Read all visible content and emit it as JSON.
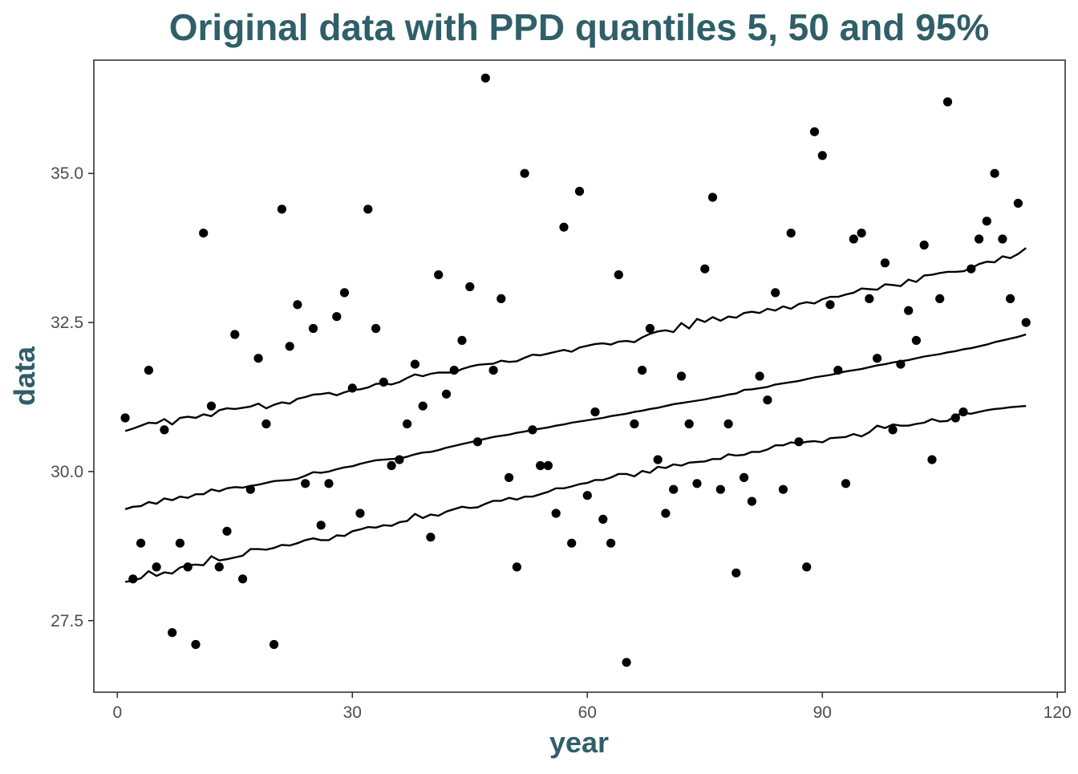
{
  "chart_data": {
    "type": "scatter",
    "title": "Original data with PPD quantiles 5, 50 and 95%",
    "xlabel": "year",
    "ylabel": "data",
    "xlim": [
      -3,
      121
    ],
    "ylim": [
      26.3,
      36.9
    ],
    "x_ticks": [
      0,
      30,
      60,
      90,
      120
    ],
    "x_tick_labels": [
      "0",
      "30",
      "60",
      "90",
      "120"
    ],
    "y_ticks": [
      27.5,
      30.0,
      32.5,
      35.0
    ],
    "y_tick_labels": [
      "27.5",
      "30.0",
      "32.5",
      "35.0"
    ],
    "grid": false,
    "legend": "none",
    "colors": {
      "title": "#2f5f68",
      "points": "#000000",
      "lines": "#000000",
      "panel_border": "#333333"
    },
    "points": {
      "x": [
        1,
        2,
        3,
        4,
        5,
        6,
        7,
        8,
        9,
        10,
        11,
        12,
        13,
        14,
        15,
        16,
        17,
        18,
        19,
        20,
        21,
        22,
        23,
        24,
        25,
        26,
        27,
        28,
        29,
        30,
        31,
        32,
        33,
        34,
        35,
        36,
        37,
        38,
        39,
        40,
        41,
        42,
        43,
        44,
        45,
        46,
        47,
        48,
        49,
        50,
        51,
        52,
        53,
        54,
        55,
        56,
        57,
        58,
        59,
        60,
        61,
        62,
        63,
        64,
        65,
        66,
        67,
        68,
        69,
        70,
        71,
        72,
        73,
        74,
        75,
        76,
        77,
        78,
        79,
        80,
        81,
        82,
        83,
        84,
        85,
        86,
        87,
        88,
        89,
        90,
        91,
        92,
        93,
        94,
        95,
        96,
        97,
        98,
        99,
        100,
        101,
        102,
        103,
        104,
        105,
        106,
        107,
        108,
        109,
        110,
        111,
        112,
        113,
        114,
        115,
        116
      ],
      "y": [
        30.9,
        28.2,
        28.8,
        31.7,
        28.4,
        30.7,
        27.3,
        28.8,
        28.4,
        27.1,
        34.0,
        31.1,
        28.4,
        29.0,
        32.3,
        28.2,
        29.7,
        31.9,
        30.8,
        27.1,
        34.4,
        32.1,
        32.8,
        29.8,
        32.4,
        29.1,
        29.8,
        32.6,
        33.0,
        31.4,
        29.3,
        34.4,
        32.4,
        31.5,
        30.1,
        30.2,
        30.8,
        31.8,
        31.1,
        28.9,
        33.3,
        31.3,
        31.7,
        32.2,
        33.1,
        30.5,
        36.6,
        31.7,
        32.9,
        29.9,
        28.4,
        35.0,
        30.7,
        30.1,
        30.1,
        29.3,
        34.1,
        28.8,
        34.7,
        29.6,
        31.0,
        29.2,
        28.8,
        33.3,
        26.8,
        30.8,
        31.7,
        32.4,
        30.2,
        29.3,
        29.7,
        31.6,
        30.8,
        29.8,
        33.4,
        34.6,
        29.7,
        30.8,
        28.3,
        29.9,
        29.5,
        31.6,
        31.2,
        33.0,
        29.7,
        34.0,
        30.5,
        28.4,
        35.7,
        35.3,
        32.8,
        31.7,
        29.8,
        33.9,
        34.0,
        32.9,
        31.9,
        33.5,
        30.7,
        31.8,
        32.7,
        32.2,
        33.8,
        30.2,
        32.9,
        36.2,
        30.9,
        31.0,
        33.4,
        33.9,
        34.2,
        35.0,
        33.9,
        32.9,
        34.5,
        32.5
      ]
    },
    "series": [
      {
        "x": [
          1,
          2,
          3,
          4,
          5,
          6,
          7,
          8,
          9,
          10,
          11,
          12,
          13,
          14,
          15,
          16,
          17,
          18,
          19,
          20,
          21,
          22,
          23,
          24,
          25,
          26,
          27,
          28,
          29,
          30,
          31,
          32,
          33,
          34,
          35,
          36,
          37,
          38,
          39,
          40,
          41,
          42,
          43,
          44,
          45,
          46,
          47,
          48,
          49,
          50,
          51,
          52,
          53,
          54,
          55,
          56,
          57,
          58,
          59,
          60,
          61,
          62,
          63,
          64,
          65,
          66,
          67,
          68,
          69,
          70,
          71,
          72,
          73,
          74,
          75,
          76,
          77,
          78,
          79,
          80,
          81,
          82,
          83,
          84,
          85,
          86,
          87,
          88,
          89,
          90,
          91,
          92,
          93,
          94,
          95,
          96,
          97,
          98,
          99,
          100,
          101,
          102,
          103,
          104,
          105,
          106,
          107,
          108,
          109,
          110,
          111,
          112,
          113,
          114,
          115,
          116
        ],
        "values": [
          28.15,
          28.17,
          28.21,
          28.33,
          28.25,
          28.31,
          28.29,
          28.39,
          28.43,
          28.44,
          28.43,
          28.58,
          28.51,
          28.53,
          28.56,
          28.59,
          28.7,
          28.7,
          28.69,
          28.72,
          28.77,
          28.76,
          28.8,
          28.85,
          28.88,
          28.85,
          28.85,
          28.93,
          28.92,
          29.0,
          29.03,
          29.07,
          29.06,
          29.1,
          29.09,
          29.15,
          29.17,
          29.29,
          29.22,
          29.28,
          29.26,
          29.33,
          29.37,
          29.41,
          29.39,
          29.4,
          29.46,
          29.51,
          29.51,
          29.56,
          29.53,
          29.58,
          29.58,
          29.62,
          29.66,
          29.72,
          29.72,
          29.75,
          29.79,
          29.81,
          29.86,
          29.86,
          29.9,
          29.96,
          29.96,
          29.92,
          30.01,
          29.98,
          30.08,
          30.06,
          30.12,
          30.1,
          30.15,
          30.16,
          30.17,
          30.21,
          30.21,
          30.29,
          30.27,
          30.28,
          30.33,
          30.33,
          30.37,
          30.44,
          30.44,
          30.49,
          30.47,
          30.5,
          30.51,
          30.49,
          30.56,
          30.57,
          30.58,
          30.63,
          30.59,
          30.66,
          30.77,
          30.73,
          30.79,
          30.77,
          30.77,
          30.8,
          30.82,
          30.88,
          30.84,
          30.85,
          30.94,
          30.98,
          30.97,
          31.0,
          31.03,
          31.05,
          31.06,
          31.08,
          31.09,
          31.1
        ]
      },
      {
        "x": [
          1,
          2,
          3,
          4,
          5,
          6,
          7,
          8,
          9,
          10,
          11,
          12,
          13,
          14,
          15,
          16,
          17,
          18,
          19,
          20,
          21,
          22,
          23,
          24,
          25,
          26,
          27,
          28,
          29,
          30,
          31,
          32,
          33,
          34,
          35,
          36,
          37,
          38,
          39,
          40,
          41,
          42,
          43,
          44,
          45,
          46,
          47,
          48,
          49,
          50,
          51,
          52,
          53,
          54,
          55,
          56,
          57,
          58,
          59,
          60,
          61,
          62,
          63,
          64,
          65,
          66,
          67,
          68,
          69,
          70,
          71,
          72,
          73,
          74,
          75,
          76,
          77,
          78,
          79,
          80,
          81,
          82,
          83,
          84,
          85,
          86,
          87,
          88,
          89,
          90,
          91,
          92,
          93,
          94,
          95,
          96,
          97,
          98,
          99,
          100,
          101,
          102,
          103,
          104,
          105,
          106,
          107,
          108,
          109,
          110,
          111,
          112,
          113,
          114,
          115,
          116
        ],
        "values": [
          29.37,
          29.41,
          29.42,
          29.49,
          29.46,
          29.55,
          29.52,
          29.58,
          29.56,
          29.62,
          29.62,
          29.7,
          29.67,
          29.72,
          29.74,
          29.73,
          29.76,
          29.78,
          29.81,
          29.84,
          29.85,
          29.86,
          29.88,
          29.93,
          29.99,
          29.98,
          30.0,
          30.04,
          30.07,
          30.09,
          30.13,
          30.16,
          30.19,
          30.2,
          30.21,
          30.22,
          30.25,
          30.29,
          30.32,
          30.33,
          30.36,
          30.4,
          30.43,
          30.46,
          30.49,
          30.52,
          30.55,
          30.58,
          30.6,
          30.62,
          30.65,
          30.67,
          30.7,
          30.72,
          30.74,
          30.77,
          30.79,
          30.82,
          30.84,
          30.86,
          30.88,
          30.9,
          30.93,
          30.95,
          30.97,
          31.0,
          31.02,
          31.05,
          31.07,
          31.1,
          31.13,
          31.15,
          31.17,
          31.19,
          31.21,
          31.24,
          31.26,
          31.29,
          31.31,
          31.37,
          31.38,
          31.4,
          31.42,
          31.46,
          31.48,
          31.5,
          31.52,
          31.55,
          31.58,
          31.6,
          31.62,
          31.65,
          31.68,
          31.7,
          31.72,
          31.75,
          31.78,
          31.8,
          31.83,
          31.85,
          31.87,
          31.9,
          31.93,
          31.95,
          31.97,
          32.0,
          32.02,
          32.05,
          32.07,
          32.1,
          32.13,
          32.17,
          32.2,
          32.23,
          32.26,
          32.3
        ]
      },
      {
        "x": [
          1,
          2,
          3,
          4,
          5,
          6,
          7,
          8,
          9,
          10,
          11,
          12,
          13,
          14,
          15,
          16,
          17,
          18,
          19,
          20,
          21,
          22,
          23,
          24,
          25,
          26,
          27,
          28,
          29,
          30,
          31,
          32,
          33,
          34,
          35,
          36,
          37,
          38,
          39,
          40,
          41,
          42,
          43,
          44,
          45,
          46,
          47,
          48,
          49,
          50,
          51,
          52,
          53,
          54,
          55,
          56,
          57,
          58,
          59,
          60,
          61,
          62,
          63,
          64,
          65,
          66,
          67,
          68,
          69,
          70,
          71,
          72,
          73,
          74,
          75,
          76,
          77,
          78,
          79,
          80,
          81,
          82,
          83,
          84,
          85,
          86,
          87,
          88,
          89,
          90,
          91,
          92,
          93,
          94,
          95,
          96,
          97,
          98,
          99,
          100,
          101,
          102,
          103,
          104,
          105,
          106,
          107,
          108,
          109,
          110,
          111,
          112,
          113,
          114,
          115,
          116
        ],
        "values": [
          30.68,
          30.72,
          30.77,
          30.82,
          30.81,
          30.88,
          30.79,
          30.9,
          30.92,
          30.9,
          30.96,
          30.93,
          31.03,
          31.06,
          31.05,
          31.07,
          31.09,
          31.14,
          31.06,
          31.12,
          31.16,
          31.14,
          31.22,
          31.25,
          31.29,
          31.3,
          31.32,
          31.28,
          31.33,
          31.37,
          31.38,
          31.41,
          31.47,
          31.48,
          31.46,
          31.5,
          31.57,
          31.63,
          31.6,
          31.64,
          31.66,
          31.66,
          31.66,
          31.72,
          31.76,
          31.79,
          31.8,
          31.81,
          31.86,
          31.84,
          31.85,
          31.91,
          31.96,
          31.95,
          31.98,
          32.01,
          32.04,
          32.01,
          32.08,
          32.11,
          32.14,
          32.15,
          32.13,
          32.18,
          32.19,
          32.17,
          32.25,
          32.31,
          32.35,
          32.37,
          32.34,
          32.49,
          32.4,
          32.56,
          32.51,
          32.59,
          32.53,
          32.6,
          32.58,
          32.66,
          32.68,
          32.66,
          32.73,
          32.7,
          32.77,
          32.73,
          32.81,
          32.84,
          32.82,
          32.89,
          32.93,
          32.93,
          32.97,
          33.0,
          33.07,
          33.06,
          33.05,
          33.14,
          33.13,
          33.11,
          33.22,
          33.18,
          33.29,
          33.3,
          33.33,
          33.35,
          33.35,
          33.36,
          33.41,
          33.48,
          33.52,
          33.51,
          33.61,
          33.58,
          33.65,
          33.75
        ]
      }
    ]
  }
}
